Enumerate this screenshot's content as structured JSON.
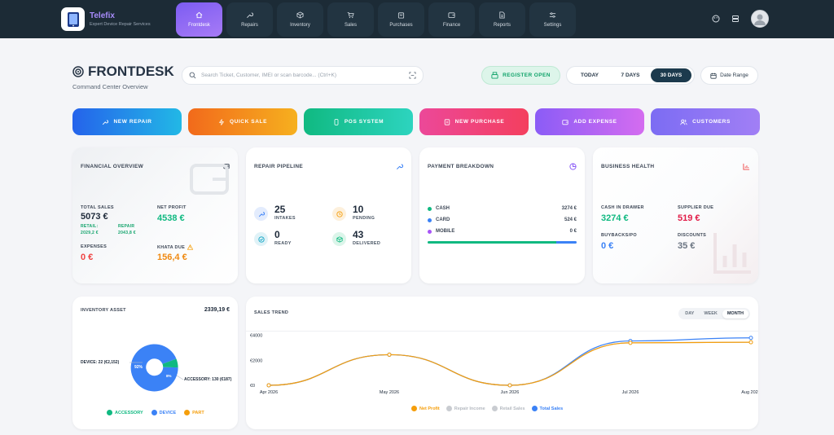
{
  "brand": {
    "name": "Telefix",
    "tagline": "Expert Device Repair Services"
  },
  "nav": [
    {
      "label": "Frontdesk",
      "icon": "home-icon",
      "active": true
    },
    {
      "label": "Repairs",
      "icon": "wrench-icon"
    },
    {
      "label": "Inventory",
      "icon": "box-icon"
    },
    {
      "label": "Sales",
      "icon": "cart-icon"
    },
    {
      "label": "Purchases",
      "icon": "bag-icon"
    },
    {
      "label": "Finance",
      "icon": "wallet-icon"
    },
    {
      "label": "Reports",
      "icon": "document-icon"
    },
    {
      "label": "Settings",
      "icon": "sliders-icon"
    }
  ],
  "header": {
    "title": "FRONTDESK",
    "subtitle": "Command Center Overview"
  },
  "search": {
    "placeholder": "Search Ticket, Customer, IMEI or scan barcode... (Ctrl+K)"
  },
  "register": {
    "label": "REGISTER OPEN"
  },
  "ranges": [
    "TODAY",
    "7 DAYS",
    "30 DAYS"
  ],
  "range_selected": "30 DAYS",
  "date_range": {
    "label": "Date Range"
  },
  "quick_actions": [
    {
      "label": "NEW REPAIR",
      "from": "#2563eb",
      "to": "#22b8e6"
    },
    {
      "label": "QUICK SALE",
      "from": "#f26a1b",
      "to": "#f6b01f"
    },
    {
      "label": "POS SYSTEM",
      "from": "#10b981",
      "to": "#2dd4bf"
    },
    {
      "label": "NEW PURCHASE",
      "from": "#ec4899",
      "to": "#f43f5e"
    },
    {
      "label": "ADD EXPENSE",
      "from": "#8b5cf6",
      "to": "#d46cf0"
    },
    {
      "label": "CUSTOMERS",
      "from": "#7c6cf3",
      "to": "#a17ff5"
    }
  ],
  "financial": {
    "title": "FINANCIAL OVERVIEW",
    "total_sales_label": "TOTAL SALES",
    "total_sales": "5073 €",
    "retail_label": "RETAIL:",
    "retail": "2029,2 €",
    "repair_label": "REPAIR",
    "repair": "2043,8 €",
    "net_profit_label": "NET PROFIT",
    "net_profit": "4538 €",
    "expenses_label": "EXPENSES",
    "expenses": "0 €",
    "khata_label": "KHATA DUE",
    "khata": "156,4 €"
  },
  "pipeline": {
    "title": "REPAIR PIPELINE",
    "intakes": "25",
    "intakes_label": "INTAKES",
    "pending": "10",
    "pending_label": "PENDING",
    "ready": "0",
    "ready_label": "READY",
    "delivered": "43",
    "delivered_label": "DELIVERED"
  },
  "payment": {
    "title": "PAYMENT BREAKDOWN",
    "rows": [
      {
        "label": "CASH",
        "amount": "3274 €",
        "color": "#10b981"
      },
      {
        "label": "CARD",
        "amount": "524 €",
        "color": "#3b82f6"
      },
      {
        "label": "MOBILE",
        "amount": "0 €",
        "color": "#a855f7"
      }
    ],
    "share": {
      "cash": 0.862,
      "card": 0.138,
      "mobile": 0
    }
  },
  "health": {
    "title": "BUSINESS HEALTH",
    "cash_label": "CASH IN DRAWER",
    "cash": "3274 €",
    "supplier_label": "SUPPLIER DUE",
    "supplier": "519 €",
    "buybacks_label": "BUYBACKS/PO",
    "buybacks": "0 €",
    "discounts_label": "DISCOUNTS",
    "discounts": "35 €"
  },
  "inventory": {
    "title": "INVENTORY ASSET",
    "total": "2339,19 €",
    "device_label": "DEVICE: 22 (€2,152)",
    "accessory_label": "ACCESSORY: 130 (€187)",
    "device_pct": "92%",
    "accessory_pct": "8%",
    "legend": [
      {
        "label": "ACCESSORY",
        "color": "#10b981"
      },
      {
        "label": "DEVICE",
        "color": "#3b82f6"
      },
      {
        "label": "PART",
        "color": "#f59e0b"
      }
    ]
  },
  "chart_data": {
    "type": "line",
    "title": "SALES TREND",
    "x": [
      "Apr 2026",
      "May 2026",
      "Jun 2026",
      "Jul 2026",
      "Aug 2026"
    ],
    "y_ticks": [
      "€4000",
      "€2000",
      "€0"
    ],
    "ylim": [
      0,
      4500
    ],
    "series": [
      {
        "name": "Net Profit",
        "color": "#f59e0b",
        "values": [
          0,
          2450,
          0,
          3400,
          3450
        ]
      },
      {
        "name": "Repair Income",
        "color": "#c9ccd1",
        "values": [
          0,
          2450,
          0,
          3400,
          3450
        ]
      },
      {
        "name": "Retail Sales",
        "color": "#c9ccd1",
        "values": [
          0,
          2450,
          0,
          3400,
          3450
        ]
      },
      {
        "name": "Total Sales",
        "color": "#3b82f6",
        "values": [
          0,
          2450,
          0,
          3550,
          3800
        ]
      }
    ],
    "period_tabs": [
      "DAY",
      "WEEK",
      "MONTH"
    ],
    "period_selected": "MONTH",
    "legend_placement": "bottom",
    "grid": false
  }
}
